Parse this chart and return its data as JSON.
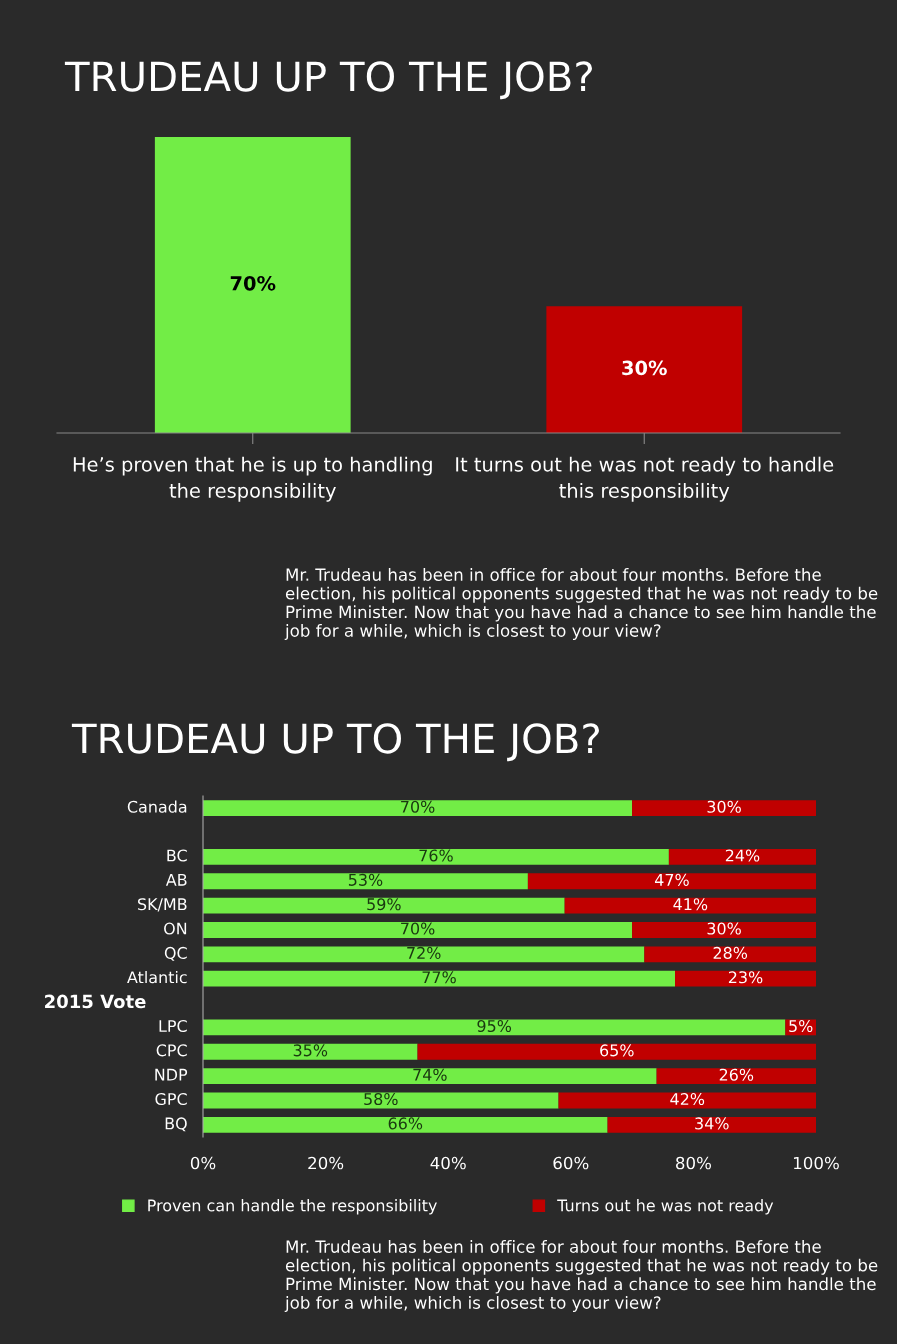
{
  "chart_data": [
    {
      "type": "bar",
      "title": "TRUDEAU UP TO THE JOB?",
      "categories": [
        "He’s proven that he is up to handling the responsibility",
        "It turns out he was not ready to handle this responsibility"
      ],
      "values": [
        70,
        30
      ],
      "value_labels": [
        "70%",
        "30%"
      ],
      "colors": [
        "#72ed46",
        "#c00000"
      ],
      "annotations": [
        "Mr. Trudeau has been in office for about four months. Before the election, his political opponents suggested that he was not ready to be Prime Minister. Now that you have had a chance to see him handle the job for a while, which is closest to your view?"
      ]
    },
    {
      "type": "bar",
      "orientation": "horizontal",
      "stacked": true,
      "title": "TRUDEAU UP TO THE JOB?",
      "categories": [
        "Canada",
        null,
        "BC",
        "AB",
        "SK/MB",
        "ON",
        "QC",
        "Atlantic",
        null,
        "LPC",
        "CPC",
        "NDP",
        "GPC",
        "BQ"
      ],
      "series": [
        {
          "name": "Proven can handle the responsibility",
          "color": "#72ed46",
          "values": [
            70,
            null,
            76,
            53,
            59,
            70,
            72,
            77,
            null,
            95,
            35,
            74,
            58,
            66
          ],
          "value_labels": [
            "70%",
            null,
            "76%",
            "53%",
            "59%",
            "70%",
            "72%",
            "77%",
            null,
            "95%",
            "35%",
            "74%",
            "58%",
            "66%"
          ]
        },
        {
          "name": "Turns out he was not ready",
          "color": "#c00000",
          "values": [
            30,
            null,
            24,
            47,
            41,
            30,
            28,
            23,
            null,
            5,
            65,
            26,
            42,
            34
          ],
          "value_labels": [
            "30%",
            null,
            "24%",
            "47%",
            "41%",
            "30%",
            "28%",
            "23%",
            null,
            "5%",
            "65%",
            "26%",
            "42%",
            "34%"
          ]
        }
      ],
      "xlim": [
        0,
        100
      ],
      "xticks": [
        {
          "value": 0,
          "label": "0%"
        },
        {
          "value": 20,
          "label": "20%"
        },
        {
          "value": 40,
          "label": "40%"
        },
        {
          "value": 60,
          "label": "60%"
        },
        {
          "value": 80,
          "label": "80%"
        },
        {
          "value": 100,
          "label": "100%"
        }
      ],
      "grid": false,
      "legend": "bottom",
      "annotations": [
        "2015 Vote",
        "Mr. Trudeau has been in office for about four months. Before the election, his political opponents suggested that he was not ready to be Prime Minister. Now that you have had a chance to see him handle the job for a while, which is closest to your view?"
      ]
    }
  ]
}
